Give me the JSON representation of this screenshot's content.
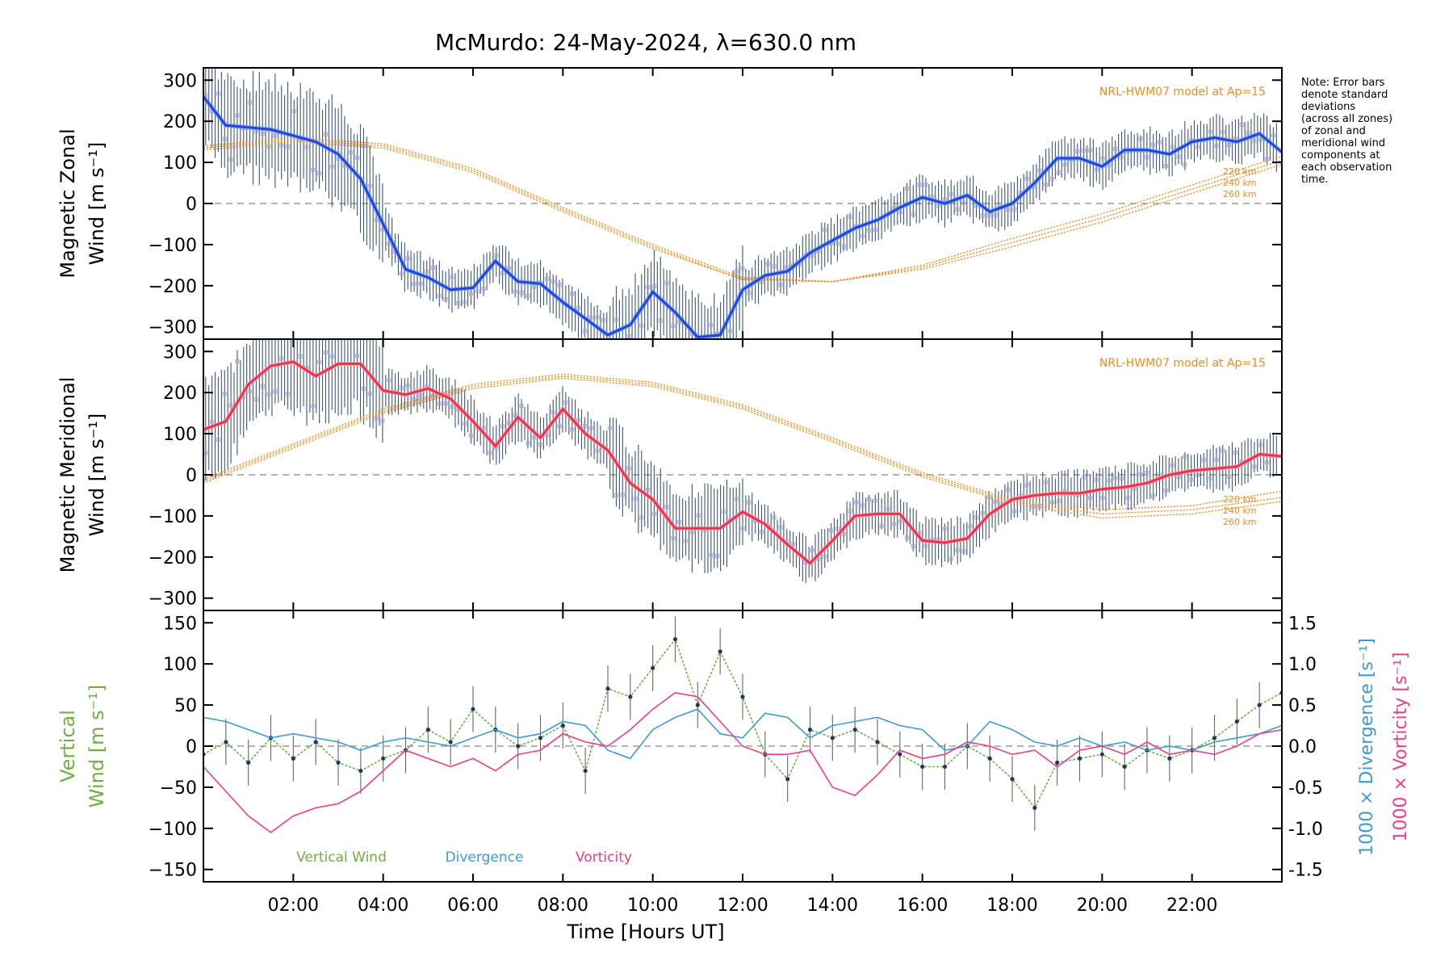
{
  "title": "McMurdo: 24-May-2024, λ=630.0 nm",
  "note_lines": [
    "Note: Error bars",
    "denote standard",
    "deviations",
    "(across all zones)",
    "of zonal and",
    "meridional wind",
    "components at",
    "each observation",
    "time."
  ],
  "colors": {
    "axis": "#000000",
    "model": "#f08a1e",
    "zonal_mean": "#2b3fe0",
    "zonal_light": "#4fa8e8",
    "meridional_mean": "#f0304e",
    "vertical": "#6fb043",
    "divergence": "#3d9ad6",
    "vorticity": "#ee3e86",
    "scatter": "#a8a0e0",
    "errbar": "#1c3a5c",
    "zero": "#888888"
  },
  "chart_data": [
    {
      "type": "line",
      "id": "zonal",
      "ylabel": [
        "Magnetic Zonal",
        "Wind [m s⁻¹]"
      ],
      "ylim": [
        -330,
        330
      ],
      "yticks": [
        300,
        200,
        100,
        0,
        -100,
        -200,
        -300
      ],
      "xlim": [
        0,
        24
      ],
      "model_label": "NRL-HWM07 model at Ap=15",
      "alt_labels": [
        "220 km",
        "240 km",
        "260 km"
      ],
      "series": [
        {
          "name": "Magnetic Zonal Wind (mean)",
          "x": [
            0.0,
            0.5,
            1.0,
            1.5,
            2.0,
            2.5,
            3.0,
            3.5,
            4.0,
            4.5,
            5.0,
            5.5,
            6.0,
            6.5,
            7.0,
            7.5,
            8.0,
            8.5,
            9.0,
            9.5,
            10.0,
            10.5,
            11.0,
            11.5,
            12.0,
            12.5,
            13.0,
            13.5,
            14.0,
            14.5,
            15.0,
            15.5,
            16.0,
            16.5,
            17.0,
            17.5,
            18.0,
            18.5,
            19.0,
            19.5,
            20.0,
            20.5,
            21.0,
            21.5,
            22.0,
            22.5,
            23.0,
            23.5,
            24.0
          ],
          "y": [
            260,
            190,
            185,
            180,
            165,
            150,
            120,
            60,
            -50,
            -160,
            -180,
            -210,
            -205,
            -140,
            -190,
            -195,
            -240,
            -280,
            -320,
            -295,
            -215,
            -265,
            -325,
            -320,
            -210,
            -175,
            -165,
            -120,
            -90,
            -60,
            -40,
            -10,
            15,
            0,
            20,
            -20,
            0,
            50,
            110,
            110,
            90,
            130,
            130,
            120,
            150,
            160,
            150,
            170,
            125
          ]
        }
      ],
      "model_lines": [
        {
          "name": "220 km",
          "x": [
            0,
            2,
            4,
            6,
            8,
            10,
            12,
            14,
            16,
            18,
            20,
            22,
            24
          ],
          "y": [
            130,
            150,
            135,
            75,
            -20,
            -110,
            -185,
            -190,
            -150,
            -85,
            -25,
            45,
            115
          ]
        },
        {
          "name": "240 km",
          "x": [
            0,
            2,
            4,
            6,
            8,
            10,
            12,
            14,
            16,
            18,
            20,
            22,
            24
          ],
          "y": [
            135,
            155,
            140,
            80,
            -15,
            -105,
            -185,
            -190,
            -155,
            -95,
            -35,
            35,
            105
          ]
        },
        {
          "name": "260 km",
          "x": [
            0,
            2,
            4,
            6,
            8,
            10,
            12,
            14,
            16,
            18,
            20,
            22,
            24
          ],
          "y": [
            140,
            160,
            145,
            85,
            -10,
            -100,
            -180,
            -190,
            -160,
            -105,
            -45,
            25,
            95
          ]
        }
      ]
    },
    {
      "type": "line",
      "id": "meridional",
      "ylabel": [
        "Magnetic Meridional",
        "Wind [m s⁻¹]"
      ],
      "ylim": [
        -330,
        330
      ],
      "yticks": [
        300,
        200,
        100,
        0,
        -100,
        -200,
        -300
      ],
      "xlim": [
        0,
        24
      ],
      "model_label": "NRL-HWM07 model at Ap=15",
      "alt_labels": [
        "220 km",
        "240 km",
        "260 km"
      ],
      "series": [
        {
          "name": "Magnetic Meridional Wind (mean)",
          "x": [
            0.0,
            0.5,
            1.0,
            1.5,
            2.0,
            2.5,
            3.0,
            3.5,
            4.0,
            4.5,
            5.0,
            5.5,
            6.0,
            6.5,
            7.0,
            7.5,
            8.0,
            8.5,
            9.0,
            9.5,
            10.0,
            10.5,
            11.0,
            11.5,
            12.0,
            12.5,
            13.0,
            13.5,
            14.0,
            14.5,
            15.0,
            15.5,
            16.0,
            16.5,
            17.0,
            17.5,
            18.0,
            18.5,
            19.0,
            19.5,
            20.0,
            20.5,
            21.0,
            21.5,
            22.0,
            22.5,
            23.0,
            23.5,
            24.0
          ],
          "y": [
            110,
            130,
            220,
            265,
            275,
            240,
            270,
            270,
            205,
            195,
            210,
            185,
            130,
            70,
            140,
            90,
            160,
            100,
            60,
            -20,
            -60,
            -130,
            -130,
            -130,
            -90,
            -120,
            -170,
            -215,
            -160,
            -100,
            -95,
            -95,
            -160,
            -165,
            -155,
            -95,
            -60,
            -50,
            -45,
            -45,
            -35,
            -30,
            -20,
            0,
            10,
            15,
            20,
            50,
            45
          ]
        }
      ],
      "model_lines": [
        {
          "name": "220 km",
          "x": [
            0,
            2,
            4,
            6,
            8,
            10,
            12,
            14,
            16,
            18,
            20,
            22,
            24
          ],
          "y": [
            -10,
            75,
            160,
            220,
            245,
            225,
            170,
            90,
            5,
            -60,
            -85,
            -75,
            -40
          ]
        },
        {
          "name": "240 km",
          "x": [
            0,
            2,
            4,
            6,
            8,
            10,
            12,
            14,
            16,
            18,
            20,
            22,
            24
          ],
          "y": [
            -15,
            70,
            155,
            215,
            240,
            220,
            165,
            85,
            0,
            -65,
            -95,
            -85,
            -55
          ]
        },
        {
          "name": "260 km",
          "x": [
            0,
            2,
            4,
            6,
            8,
            10,
            12,
            14,
            16,
            18,
            20,
            22,
            24
          ],
          "y": [
            -20,
            65,
            150,
            210,
            235,
            215,
            160,
            80,
            -5,
            -70,
            -105,
            -95,
            -65
          ]
        }
      ]
    },
    {
      "type": "line",
      "id": "vertical",
      "ylabel": [
        "Vertical",
        "Wind [m s⁻¹]"
      ],
      "y2label": "1000 × Divergence [s⁻¹]",
      "y3label": "1000 × Vorticity [s⁻¹]",
      "xlabel": "Time [Hours UT]",
      "ylim": [
        -165,
        165
      ],
      "yticks": [
        150,
        100,
        50,
        0,
        -50,
        -100,
        -150
      ],
      "y2lim": [
        -1.65,
        1.65
      ],
      "y2ticks": [
        1.5,
        1.0,
        0.5,
        0.0,
        -0.5,
        -1.0,
        -1.5
      ],
      "xlim": [
        0,
        24
      ],
      "xticks": [
        "02:00",
        "04:00",
        "06:00",
        "08:00",
        "10:00",
        "12:00",
        "14:00",
        "16:00",
        "18:00",
        "20:00",
        "22:00"
      ],
      "xtick_values": [
        2,
        4,
        6,
        8,
        10,
        12,
        14,
        16,
        18,
        20,
        22
      ],
      "legend": [
        "Vertical Wind",
        "Divergence",
        "Vorticity"
      ],
      "series": [
        {
          "name": "Vertical Wind",
          "x": [
            0.0,
            0.5,
            1.0,
            1.5,
            2.0,
            2.5,
            3.0,
            3.5,
            4.0,
            4.5,
            5.0,
            5.5,
            6.0,
            6.5,
            7.0,
            7.5,
            8.0,
            8.5,
            9.0,
            9.5,
            10.0,
            10.5,
            11.0,
            11.5,
            12.0,
            12.5,
            13.0,
            13.5,
            14.0,
            14.5,
            15.0,
            15.5,
            16.0,
            16.5,
            17.0,
            17.5,
            18.0,
            18.5,
            19.0,
            19.5,
            20.0,
            20.5,
            21.0,
            21.5,
            22.0,
            22.5,
            23.0,
            23.5,
            24.0
          ],
          "y": [
            -10,
            5,
            -20,
            10,
            -15,
            5,
            -20,
            -30,
            -15,
            -5,
            20,
            5,
            45,
            20,
            0,
            10,
            25,
            -30,
            70,
            60,
            95,
            130,
            50,
            115,
            60,
            -10,
            -40,
            20,
            10,
            20,
            5,
            -10,
            -25,
            -25,
            0,
            -15,
            -40,
            -75,
            -20,
            -15,
            -10,
            -25,
            -5,
            -15,
            -5,
            10,
            30,
            50,
            65
          ]
        },
        {
          "name": "Divergence",
          "x": [
            0.0,
            0.5,
            1.0,
            1.5,
            2.0,
            2.5,
            3.0,
            3.5,
            4.0,
            4.5,
            5.0,
            5.5,
            6.0,
            6.5,
            7.0,
            7.5,
            8.0,
            8.5,
            9.0,
            9.5,
            10.0,
            10.5,
            11.0,
            11.5,
            12.0,
            12.5,
            13.0,
            13.5,
            14.0,
            14.5,
            15.0,
            15.5,
            16.0,
            16.5,
            17.0,
            17.5,
            18.0,
            18.5,
            19.0,
            19.5,
            20.0,
            20.5,
            21.0,
            21.5,
            22.0,
            22.5,
            23.0,
            23.5,
            24.0
          ],
          "y": [
            0.35,
            0.3,
            0.2,
            0.1,
            0.15,
            0.1,
            0.05,
            -0.05,
            0.05,
            0.1,
            0.05,
            0.0,
            0.1,
            0.2,
            0.1,
            0.15,
            0.3,
            0.25,
            -0.05,
            -0.15,
            0.2,
            0.35,
            0.45,
            0.15,
            0.1,
            0.4,
            0.35,
            0.1,
            0.25,
            0.3,
            0.35,
            0.25,
            0.2,
            -0.05,
            0.0,
            0.3,
            0.2,
            0.05,
            0.0,
            0.1,
            0.0,
            0.05,
            -0.05,
            0.0,
            -0.05,
            0.05,
            0.1,
            0.15,
            0.25
          ]
        },
        {
          "name": "Vorticity",
          "x": [
            0.0,
            0.5,
            1.0,
            1.5,
            2.0,
            2.5,
            3.0,
            3.5,
            4.0,
            4.5,
            5.0,
            5.5,
            6.0,
            6.5,
            7.0,
            7.5,
            8.0,
            8.5,
            9.0,
            9.5,
            10.0,
            10.5,
            11.0,
            11.5,
            12.0,
            12.5,
            13.0,
            13.5,
            14.0,
            14.5,
            15.0,
            15.5,
            16.0,
            16.5,
            17.0,
            17.5,
            18.0,
            18.5,
            19.0,
            19.5,
            20.0,
            20.5,
            21.0,
            21.5,
            22.0,
            22.5,
            23.0,
            23.5,
            24.0
          ],
          "y": [
            -0.25,
            -0.55,
            -0.85,
            -1.05,
            -0.85,
            -0.75,
            -0.7,
            -0.55,
            -0.3,
            -0.05,
            -0.15,
            -0.25,
            -0.15,
            -0.3,
            -0.1,
            -0.05,
            0.15,
            0.05,
            0.0,
            0.2,
            0.45,
            0.65,
            0.6,
            0.3,
            0.0,
            -0.1,
            -0.1,
            -0.05,
            -0.5,
            -0.6,
            -0.35,
            -0.05,
            -0.15,
            -0.1,
            0.05,
            0.0,
            -0.1,
            -0.05,
            -0.25,
            -0.05,
            0.0,
            -0.1,
            0.05,
            -0.1,
            -0.05,
            -0.1,
            0.0,
            0.15,
            0.2
          ]
        }
      ]
    }
  ]
}
